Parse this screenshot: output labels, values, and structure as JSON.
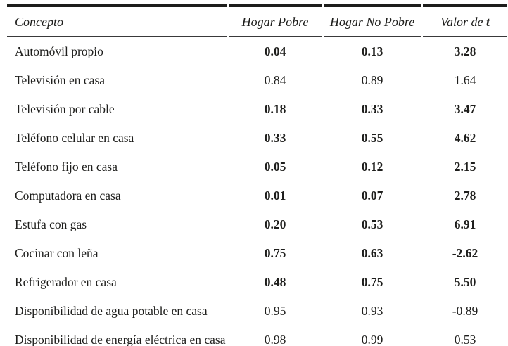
{
  "table": {
    "headers": {
      "concepto": "Concepto",
      "hogar_pobre": "Hogar Pobre",
      "hogar_no_pobre": "Hogar No Pobre",
      "valor_prefix": "Valor de ",
      "valor_emphasis": "t"
    },
    "rows": [
      {
        "concepto": "Automóvil propio",
        "hogar_pobre": "0.04",
        "hogar_no_pobre": "0.13",
        "valor_t": "3.28",
        "bold": true
      },
      {
        "concepto": "Televisión en casa",
        "hogar_pobre": "0.84",
        "hogar_no_pobre": "0.89",
        "valor_t": "1.64",
        "bold": false
      },
      {
        "concepto": "Televisión por cable",
        "hogar_pobre": "0.18",
        "hogar_no_pobre": "0.33",
        "valor_t": "3.47",
        "bold": true
      },
      {
        "concepto": "Teléfono celular en casa",
        "hogar_pobre": "0.33",
        "hogar_no_pobre": "0.55",
        "valor_t": "4.62",
        "bold": true
      },
      {
        "concepto": "Teléfono fijo en casa",
        "hogar_pobre": "0.05",
        "hogar_no_pobre": "0.12",
        "valor_t": "2.15",
        "bold": true
      },
      {
        "concepto": "Computadora en casa",
        "hogar_pobre": "0.01",
        "hogar_no_pobre": "0.07",
        "valor_t": "2.78",
        "bold": true
      },
      {
        "concepto": "Estufa con gas",
        "hogar_pobre": "0.20",
        "hogar_no_pobre": "0.53",
        "valor_t": "6.91",
        "bold": true
      },
      {
        "concepto": "Cocinar con leña",
        "hogar_pobre": "0.75",
        "hogar_no_pobre": "0.63",
        "valor_t": "-2.62",
        "bold": true
      },
      {
        "concepto": "Refrigerador en casa",
        "hogar_pobre": "0.48",
        "hogar_no_pobre": "0.75",
        "valor_t": "5.50",
        "bold": true
      },
      {
        "concepto": "Disponibilidad de agua potable en casa",
        "hogar_pobre": "0.95",
        "hogar_no_pobre": "0.93",
        "valor_t": "-0.89",
        "bold": false
      },
      {
        "concepto": "Disponibilidad de energía eléctrica en casa",
        "hogar_pobre": "0.98",
        "hogar_no_pobre": "0.99",
        "valor_t": "0.53",
        "bold": false
      }
    ]
  },
  "colors": {
    "rule": "#1d1d1b",
    "text": "#1e1e1c"
  }
}
